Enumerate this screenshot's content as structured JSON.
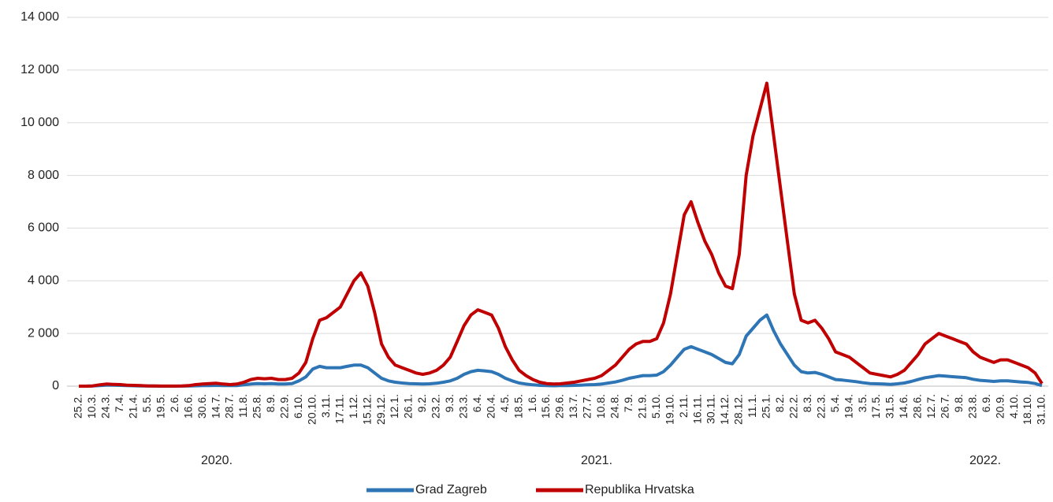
{
  "chart_data": {
    "type": "line",
    "categories": [
      "25.2.",
      null,
      "10.3.",
      null,
      "24.3.",
      null,
      "7.4.",
      null,
      "21.4.",
      null,
      "5.5.",
      null,
      "19.5.",
      null,
      "2.6.",
      null,
      "16.6.",
      null,
      "30.6.",
      null,
      "14.7.",
      null,
      "28.7.",
      null,
      "11.8.",
      null,
      "25.8.",
      null,
      "8.9.",
      null,
      "22.9.",
      null,
      "6.10.",
      null,
      "20.10.",
      null,
      "3.11.",
      null,
      "17.11.",
      null,
      "1.12.",
      null,
      "15.12.",
      null,
      "29.12.",
      null,
      "12.1.",
      null,
      "26.1.",
      null,
      "9.2.",
      null,
      "23.2.",
      null,
      "9.3.",
      null,
      "23.3.",
      null,
      "6.4.",
      null,
      "20.4.",
      null,
      "4.5.",
      null,
      "18.5.",
      null,
      "1.6.",
      null,
      "15.6.",
      null,
      "29.6.",
      null,
      "13.7.",
      null,
      "27.7.",
      null,
      "10.8.",
      null,
      "24.8.",
      null,
      "7.9.",
      null,
      "21.9.",
      null,
      "5.10.",
      null,
      "19.10.",
      null,
      "2.11.",
      null,
      "16.11.",
      null,
      "30.11.",
      null,
      "14.12.",
      null,
      "28.12.",
      null,
      "11.1.",
      null,
      "25.1.",
      null,
      "8.2.",
      null,
      "22.2.",
      null,
      "8.3.",
      null,
      "22.3.",
      null,
      "5.4.",
      null,
      "19.4.",
      null,
      "3.5.",
      null,
      "17.5.",
      null,
      "31.5.",
      null,
      "14.6.",
      null,
      "28.6.",
      null,
      "12.7.",
      null,
      "26.7.",
      null,
      "9.8.",
      null,
      "23.8.",
      null,
      "6.9.",
      null,
      "20.9.",
      null,
      "4.10.",
      null,
      "18.10.",
      null,
      "31.10."
    ],
    "x_group_labels": [
      "2020.",
      "2021.",
      "2022."
    ],
    "series": [
      {
        "name": "Grad Zagreb",
        "color": "#2e75b6",
        "values": [
          0,
          0,
          5,
          20,
          40,
          35,
          30,
          20,
          15,
          10,
          5,
          2,
          1,
          1,
          1,
          2,
          5,
          15,
          20,
          25,
          30,
          25,
          20,
          25,
          50,
          80,
          100,
          90,
          100,
          80,
          80,
          100,
          200,
          350,
          650,
          750,
          700,
          700,
          700,
          750,
          800,
          800,
          700,
          500,
          300,
          200,
          150,
          120,
          100,
          90,
          80,
          90,
          110,
          150,
          200,
          300,
          450,
          550,
          600,
          580,
          550,
          450,
          300,
          200,
          120,
          80,
          50,
          30,
          20,
          15,
          20,
          25,
          30,
          40,
          50,
          60,
          80,
          120,
          160,
          220,
          300,
          350,
          400,
          400,
          420,
          550,
          800,
          1100,
          1400,
          1500,
          1400,
          1300,
          1200,
          1050,
          900,
          850,
          1200,
          1900,
          2200,
          2500,
          2700,
          2100,
          1600,
          1200,
          800,
          550,
          500,
          520,
          450,
          350,
          250,
          230,
          200,
          170,
          130,
          100,
          90,
          80,
          70,
          90,
          120,
          180,
          250,
          320,
          360,
          400,
          380,
          360,
          340,
          320,
          260,
          220,
          200,
          180,
          200,
          200,
          180,
          160,
          140,
          100,
          20
        ]
      },
      {
        "name": "Republika Hrvatska",
        "color": "#c00000",
        "values": [
          0,
          0,
          10,
          50,
          80,
          70,
          60,
          40,
          30,
          20,
          10,
          5,
          3,
          2,
          3,
          5,
          20,
          60,
          80,
          100,
          110,
          80,
          60,
          80,
          150,
          250,
          300,
          280,
          300,
          250,
          250,
          300,
          500,
          900,
          1800,
          2500,
          2600,
          2800,
          3000,
          3500,
          4000,
          4300,
          3800,
          2800,
          1600,
          1100,
          800,
          700,
          600,
          500,
          450,
          500,
          600,
          800,
          1100,
          1700,
          2300,
          2700,
          2900,
          2800,
          2700,
          2200,
          1500,
          1000,
          600,
          400,
          250,
          150,
          100,
          80,
          90,
          120,
          150,
          200,
          250,
          300,
          400,
          600,
          800,
          1100,
          1400,
          1600,
          1700,
          1700,
          1800,
          2400,
          3500,
          5000,
          6500,
          7000,
          6200,
          5500,
          5000,
          4300,
          3800,
          3700,
          5000,
          8000,
          9500,
          10500,
          11500,
          9500,
          7500,
          5500,
          3500,
          2500,
          2400,
          2500,
          2200,
          1800,
          1300,
          1200,
          1100,
          900,
          700,
          500,
          450,
          400,
          350,
          450,
          600,
          900,
          1200,
          1600,
          1800,
          2000,
          1900,
          1800,
          1700,
          1600,
          1300,
          1100,
          1000,
          900,
          1000,
          1000,
          900,
          800,
          700,
          500,
          100
        ]
      }
    ],
    "ylim": [
      0,
      14000
    ],
    "yticks": [
      0,
      {
        "value": 2000,
        "label": "2 000"
      },
      {
        "value": 4000,
        "label": "4 000"
      },
      {
        "value": 6000,
        "label": "6 000"
      },
      {
        "value": 8000,
        "label": "8 000"
      },
      {
        "value": 10000,
        "label": "10 000"
      },
      {
        "value": 12000,
        "label": "12 000"
      },
      {
        "value": 14000,
        "label": "14 000"
      }
    ],
    "grid": true
  }
}
